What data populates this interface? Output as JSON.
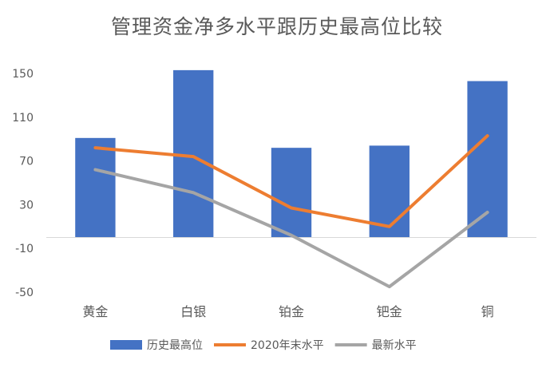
{
  "chart_data": {
    "type": "bar",
    "title": "管理资金净多水平跟历史最高位比较",
    "categories": [
      "黄金",
      "白银",
      "铂金",
      "钯金",
      "铜"
    ],
    "y_ticks": [
      150,
      110,
      70,
      30,
      -10,
      -50
    ],
    "ylim": [
      -50,
      150
    ],
    "grid": false,
    "legend_position": "bottom",
    "series": [
      {
        "name": "历史最高位",
        "type": "bar",
        "color": "#4472C4",
        "values": [
          91,
          153,
          82,
          84,
          143
        ]
      },
      {
        "name": "2020年末水平",
        "type": "line",
        "color": "#ED7D31",
        "values": [
          82,
          74,
          27,
          10,
          93
        ]
      },
      {
        "name": "最新水平",
        "type": "line",
        "color": "#A5A5A5",
        "values": [
          62,
          41,
          2,
          -45,
          23
        ]
      }
    ]
  }
}
